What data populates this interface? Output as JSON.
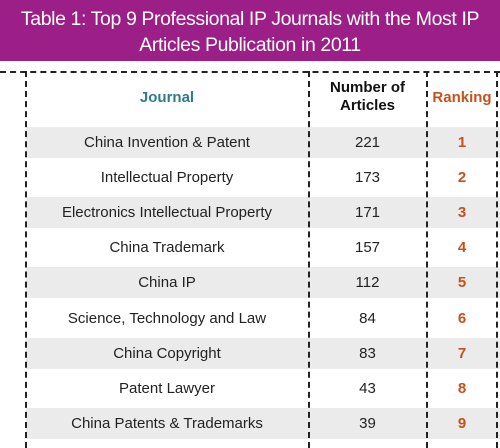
{
  "title": {
    "line1": "Table 1: Top 9 Professional IP Journals with the Most IP",
    "line2": "Articles Publication in 2011"
  },
  "headers": {
    "journal": "Journal",
    "count_line1": "Number of",
    "count_line2": "Articles",
    "ranking": "Ranking"
  },
  "colors": {
    "title_bg": "#9b1f86",
    "journal_header": "#2f7c8a",
    "ranking": "#c8501c",
    "row_shade": "#ebebeb"
  },
  "chart_data": {
    "type": "table",
    "title": "Table 1: Top 9 Professional IP Journals with the Most IP Articles Publication in 2011",
    "columns": [
      "Journal",
      "Number of Articles",
      "Ranking"
    ],
    "rows": [
      {
        "journal": "China Invention & Patent",
        "articles": 221,
        "ranking": 1
      },
      {
        "journal": "Intellectual Property",
        "articles": 173,
        "ranking": 2
      },
      {
        "journal": "Electronics Intellectual Property",
        "articles": 171,
        "ranking": 3
      },
      {
        "journal": "China Trademark",
        "articles": 157,
        "ranking": 4
      },
      {
        "journal": "China IP",
        "articles": 112,
        "ranking": 5
      },
      {
        "journal": "Science, Technology and Law",
        "articles": 84,
        "ranking": 6
      },
      {
        "journal": "China Copyright",
        "articles": 83,
        "ranking": 7
      },
      {
        "journal": "Patent Lawyer",
        "articles": 43,
        "ranking": 8
      },
      {
        "journal": "China Patents & Trademarks",
        "articles": 39,
        "ranking": 9
      }
    ]
  }
}
